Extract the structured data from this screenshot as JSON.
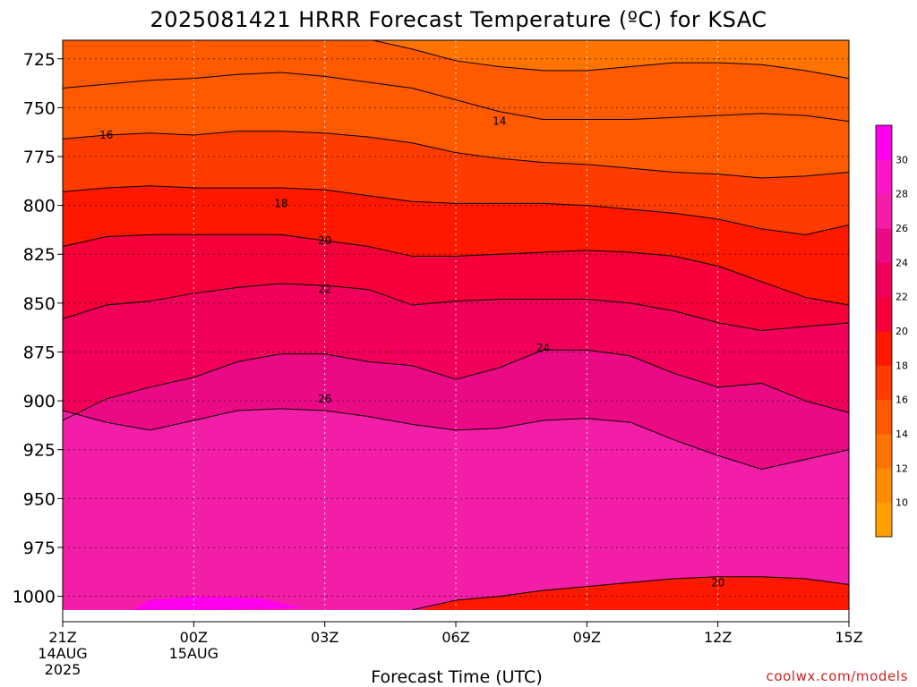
{
  "chart_data": {
    "type": "heatmap",
    "title": "2025081421 HRRR Forecast Temperature (ºC) for KSAC",
    "xlabel": "Forecast Time (UTC)",
    "ylabel": "",
    "credit": "coolwx.com/models",
    "x_ticks": [
      {
        "label": "21Z",
        "sub1": "14AUG",
        "sub2": "2025",
        "hour": 0
      },
      {
        "label": "00Z",
        "sub1": "15AUG",
        "sub2": "",
        "hour": 3
      },
      {
        "label": "03Z",
        "sub1": "",
        "sub2": "",
        "hour": 6
      },
      {
        "label": "06Z",
        "sub1": "",
        "sub2": "",
        "hour": 9
      },
      {
        "label": "09Z",
        "sub1": "",
        "sub2": "",
        "hour": 12
      },
      {
        "label": "12Z",
        "sub1": "",
        "sub2": "",
        "hour": 15
      },
      {
        "label": "15Z",
        "sub1": "",
        "sub2": "",
        "hour": 18
      }
    ],
    "xlim_hours": [
      0,
      18
    ],
    "y_ticks": [
      725,
      750,
      775,
      800,
      825,
      850,
      875,
      900,
      925,
      950,
      975,
      1000
    ],
    "ylim_hPa": [
      710,
      1010
    ],
    "y_inverted": true,
    "grid": true,
    "colorbar": {
      "ticks": [
        10,
        12,
        14,
        16,
        18,
        20,
        22,
        24,
        26,
        28,
        30
      ],
      "levels": [
        8,
        10,
        12,
        14,
        16,
        18,
        20,
        22,
        24,
        26,
        28,
        30,
        32
      ],
      "colors": [
        "#ff9f00",
        "#ff8c00",
        "#ff7400",
        "#ff5a00",
        "#ff3c00",
        "#ff1800",
        "#f5003a",
        "#f0005a",
        "#ea0a85",
        "#f31ea8",
        "#fb14c8",
        "#ff00ee"
      ]
    },
    "contours": [
      {
        "value": 14,
        "label": "14",
        "label_at": {
          "hour": 10.0,
          "hPa": 757
        },
        "points": [
          [
            0,
            713
          ],
          [
            1,
            712
          ],
          [
            2,
            712
          ],
          [
            3,
            711
          ],
          [
            4,
            711
          ],
          [
            5,
            711
          ],
          [
            6,
            712
          ],
          [
            7,
            715
          ],
          [
            8,
            720
          ],
          [
            9,
            726
          ],
          [
            10,
            729
          ],
          [
            11,
            731
          ],
          [
            12,
            731
          ],
          [
            13,
            729
          ],
          [
            14,
            727
          ],
          [
            15,
            727
          ],
          [
            16,
            728
          ],
          [
            17,
            731
          ],
          [
            18,
            735
          ]
        ]
      },
      {
        "value": 15,
        "label": "",
        "points": [
          [
            0,
            740
          ],
          [
            1,
            738
          ],
          [
            2,
            736
          ],
          [
            3,
            735
          ],
          [
            4,
            733
          ],
          [
            5,
            732
          ],
          [
            6,
            734
          ],
          [
            7,
            737
          ],
          [
            8,
            740
          ],
          [
            9,
            746
          ],
          [
            10,
            752
          ],
          [
            11,
            756
          ],
          [
            12,
            756
          ],
          [
            13,
            756
          ],
          [
            14,
            755
          ],
          [
            15,
            754
          ],
          [
            16,
            753
          ],
          [
            17,
            754
          ],
          [
            18,
            757
          ]
        ]
      },
      {
        "value": 16,
        "label": "16",
        "label_at": {
          "hour": 1.0,
          "hPa": 764
        },
        "points": [
          [
            0,
            766
          ],
          [
            1,
            764
          ],
          [
            2,
            763
          ],
          [
            3,
            764
          ],
          [
            4,
            762
          ],
          [
            5,
            762
          ],
          [
            6,
            763
          ],
          [
            7,
            765
          ],
          [
            8,
            768
          ],
          [
            9,
            773
          ],
          [
            10,
            776
          ],
          [
            11,
            778
          ],
          [
            12,
            779
          ],
          [
            13,
            781
          ],
          [
            14,
            783
          ],
          [
            15,
            784
          ],
          [
            16,
            786
          ],
          [
            17,
            785
          ],
          [
            18,
            783
          ]
        ]
      },
      {
        "value": 18,
        "label": "18",
        "label_at": {
          "hour": 5.0,
          "hPa": 799
        },
        "points": [
          [
            0,
            793
          ],
          [
            1,
            791
          ],
          [
            2,
            790
          ],
          [
            3,
            791
          ],
          [
            4,
            791
          ],
          [
            5,
            791
          ],
          [
            6,
            792
          ],
          [
            7,
            795
          ],
          [
            8,
            798
          ],
          [
            9,
            799
          ],
          [
            10,
            799
          ],
          [
            11,
            799
          ],
          [
            12,
            800
          ],
          [
            13,
            802
          ],
          [
            14,
            804
          ],
          [
            15,
            807
          ],
          [
            16,
            812
          ],
          [
            17,
            815
          ],
          [
            18,
            810
          ]
        ]
      },
      {
        "value": 20,
        "label": "20",
        "label_at": {
          "hour": 6.0,
          "hPa": 818
        },
        "points": [
          [
            0,
            821
          ],
          [
            1,
            816
          ],
          [
            2,
            815
          ],
          [
            3,
            815
          ],
          [
            4,
            815
          ],
          [
            5,
            815
          ],
          [
            6,
            818
          ],
          [
            7,
            821
          ],
          [
            8,
            826
          ],
          [
            9,
            826
          ],
          [
            10,
            825
          ],
          [
            11,
            824
          ],
          [
            12,
            823
          ],
          [
            13,
            824
          ],
          [
            14,
            826
          ],
          [
            15,
            831
          ],
          [
            16,
            839
          ],
          [
            17,
            847
          ],
          [
            18,
            851
          ]
        ]
      },
      {
        "value": 22,
        "label": "22",
        "label_at": {
          "hour": 6.0,
          "hPa": 843
        },
        "points": [
          [
            0,
            858
          ],
          [
            1,
            851
          ],
          [
            2,
            849
          ],
          [
            3,
            845
          ],
          [
            4,
            842
          ],
          [
            5,
            840
          ],
          [
            6,
            841
          ],
          [
            7,
            843
          ],
          [
            8,
            851
          ],
          [
            9,
            849
          ],
          [
            10,
            848
          ],
          [
            11,
            848
          ],
          [
            12,
            848
          ],
          [
            13,
            850
          ],
          [
            14,
            854
          ],
          [
            15,
            860
          ],
          [
            16,
            864
          ],
          [
            17,
            862
          ],
          [
            18,
            860
          ]
        ]
      },
      {
        "value": 24,
        "label": "24",
        "label_at": {
          "hour": 11.0,
          "hPa": 873
        },
        "points": [
          [
            0,
            910
          ],
          [
            1,
            899
          ],
          [
            2,
            893
          ],
          [
            3,
            888
          ],
          [
            4,
            880
          ],
          [
            5,
            876
          ],
          [
            6,
            876
          ],
          [
            7,
            880
          ],
          [
            8,
            882
          ],
          [
            9,
            889
          ],
          [
            10,
            883
          ],
          [
            11,
            874
          ],
          [
            12,
            874
          ],
          [
            13,
            877
          ],
          [
            14,
            886
          ],
          [
            15,
            893
          ],
          [
            16,
            891
          ],
          [
            17,
            900
          ],
          [
            18,
            906
          ]
        ]
      },
      {
        "value": 26,
        "label": "26",
        "label_at": {
          "hour": 6.0,
          "hPa": 899
        },
        "points": [
          [
            0,
            905
          ],
          [
            1,
            911
          ],
          [
            2,
            915
          ],
          [
            3,
            910
          ],
          [
            4,
            905
          ],
          [
            5,
            904
          ],
          [
            6,
            905
          ],
          [
            7,
            908
          ],
          [
            8,
            912
          ],
          [
            9,
            915
          ],
          [
            10,
            914
          ],
          [
            11,
            910
          ],
          [
            12,
            909
          ],
          [
            13,
            911
          ],
          [
            14,
            920
          ],
          [
            15,
            928
          ],
          [
            16,
            935
          ],
          [
            17,
            930
          ],
          [
            18,
            925
          ]
        ]
      },
      {
        "value": 20,
        "label": "20",
        "label_at": {
          "hour": 15.0,
          "hPa": 993
        },
        "points": [
          [
            8,
            1007
          ],
          [
            9,
            1002
          ],
          [
            10,
            1000
          ],
          [
            11,
            997
          ],
          [
            12,
            995
          ],
          [
            13,
            993
          ],
          [
            14,
            991
          ],
          [
            15,
            990
          ],
          [
            16,
            990
          ],
          [
            17,
            991
          ],
          [
            18,
            994
          ]
        ]
      }
    ],
    "terrain_color": "#a05030"
  }
}
